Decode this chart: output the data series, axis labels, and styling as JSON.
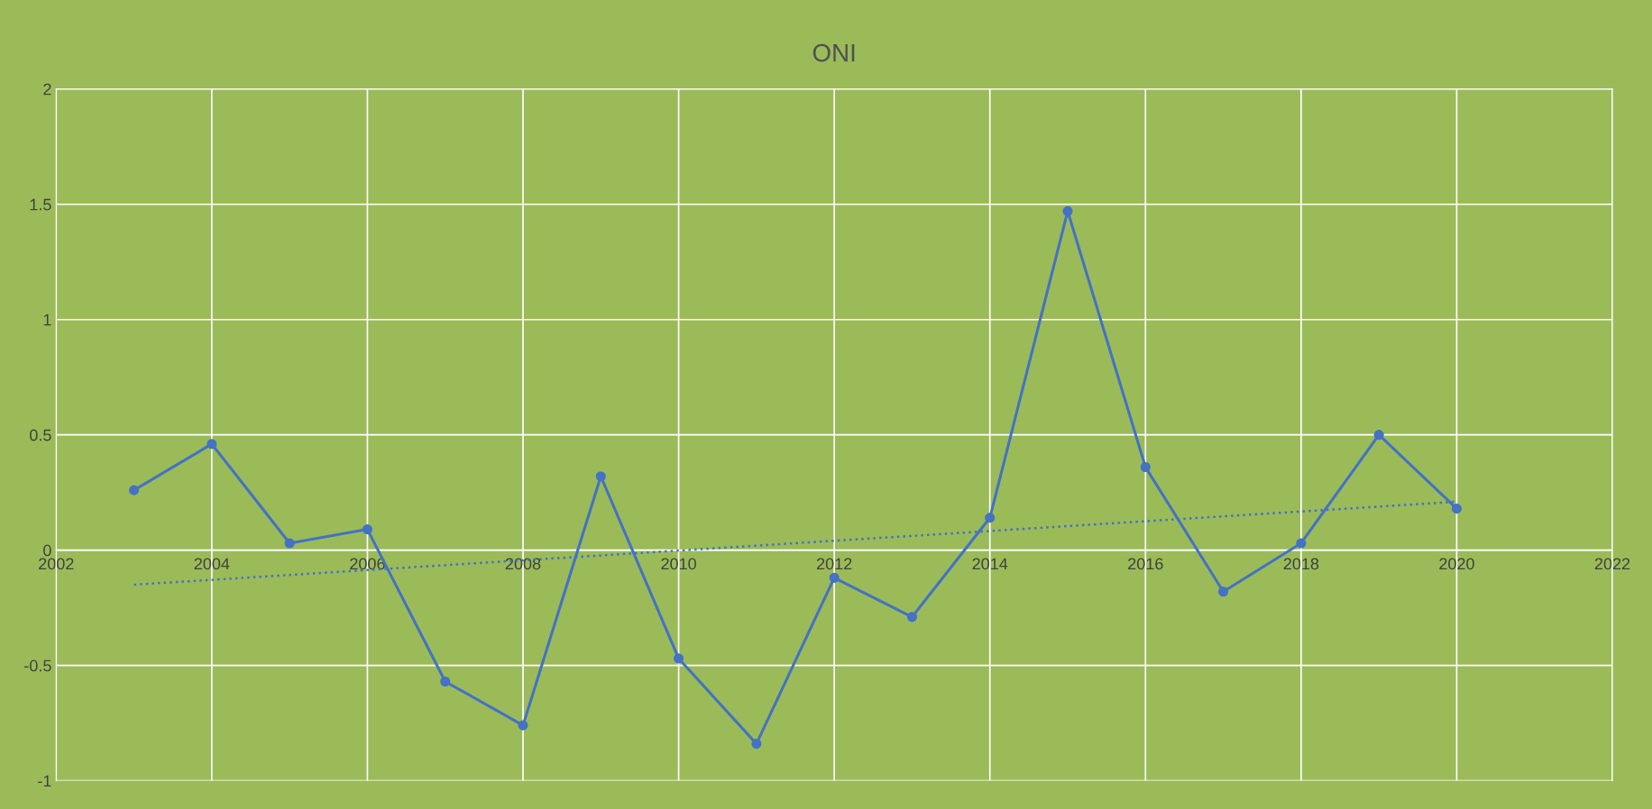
{
  "chart_data": {
    "type": "line",
    "title": "ONI",
    "x": [
      2003,
      2004,
      2005,
      2006,
      2007,
      2008,
      2009,
      2010,
      2011,
      2012,
      2013,
      2014,
      2015,
      2016,
      2017,
      2018,
      2019,
      2020
    ],
    "series": [
      {
        "color": "#4472c4",
        "marker": "circle",
        "line_style": "solid",
        "values": [
          0.26,
          0.46,
          0.03,
          0.09,
          -0.57,
          -0.76,
          0.32,
          -0.47,
          -0.84,
          -0.12,
          -0.29,
          0.14,
          1.47,
          0.36,
          -0.18,
          0.03,
          0.5,
          0.18
        ]
      },
      {
        "type": "line",
        "color": "#4472c4",
        "marker": "none",
        "line_style": "dotted",
        "x": [
          2003,
          2020
        ],
        "values": [
          -0.15,
          0.21
        ]
      }
    ],
    "xlim": [
      2002,
      2022
    ],
    "xticks": [
      2002,
      2004,
      2006,
      2008,
      2010,
      2012,
      2014,
      2016,
      2018,
      2020,
      2022
    ],
    "ylim": [
      -1,
      2
    ],
    "yticks": [
      -1,
      -0.5,
      0,
      0.5,
      1,
      1.5,
      2
    ],
    "grid": true,
    "legend": false
  }
}
